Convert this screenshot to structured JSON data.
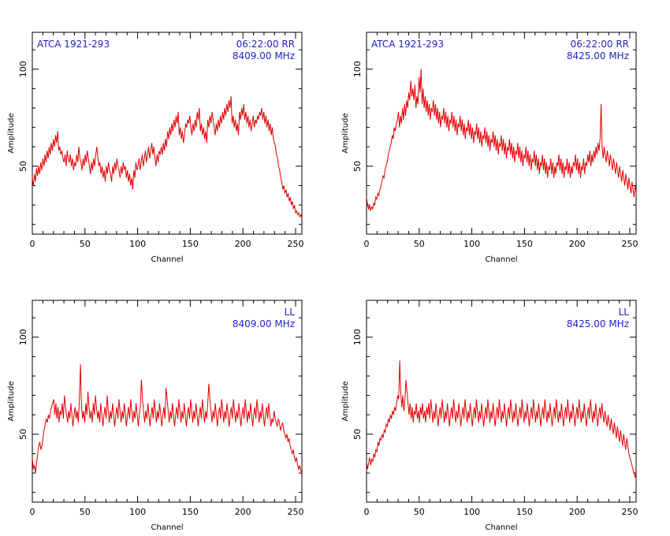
{
  "colors": {
    "trace": "#e00000",
    "annotation": "#1f1fbf",
    "frame": "#000000",
    "background": "#ffffff"
  },
  "chart_data": [
    {
      "type": "line",
      "source": "ATCA 1921-293",
      "time_pol": "06:22:00  RR",
      "freq": "8409.00 MHz",
      "xlabel": "Channel",
      "ylabel": "Amplitude",
      "xlim": [
        0,
        256
      ],
      "ylim": [
        15,
        119
      ],
      "xticks": [
        0,
        50,
        100,
        150,
        200,
        250
      ],
      "yticks": [
        50,
        100
      ],
      "series": [
        {
          "values": [
            44,
            40,
            46,
            42,
            49,
            45,
            50,
            46,
            52,
            48,
            54,
            50,
            56,
            52,
            58,
            54,
            60,
            56,
            62,
            58,
            64,
            60,
            66,
            62,
            68,
            58,
            60,
            56,
            58,
            54,
            52,
            56,
            50,
            58,
            54,
            52,
            56,
            50,
            54,
            48,
            52,
            50,
            56,
            52,
            60,
            54,
            52,
            48,
            54,
            50,
            56,
            52,
            58,
            54,
            50,
            46,
            52,
            48,
            54,
            50,
            56,
            60,
            54,
            50,
            52,
            46,
            50,
            44,
            48,
            42,
            50,
            46,
            52,
            48,
            46,
            42,
            50,
            46,
            52,
            48,
            54,
            50,
            48,
            44,
            50,
            46,
            52,
            48,
            50,
            44,
            48,
            42,
            46,
            40,
            44,
            38,
            48,
            44,
            52,
            48,
            50,
            54,
            48,
            52,
            56,
            50,
            54,
            58,
            52,
            56,
            60,
            54,
            58,
            62,
            56,
            60,
            54,
            50,
            56,
            52,
            58,
            56,
            60,
            56,
            62,
            58,
            64,
            60,
            68,
            64,
            70,
            66,
            72,
            68,
            74,
            70,
            76,
            72,
            78,
            66,
            70,
            64,
            68,
            62,
            66,
            72,
            70,
            74,
            72,
            76,
            70,
            66,
            72,
            68,
            74,
            70,
            78,
            74,
            80,
            68,
            72,
            66,
            70,
            64,
            68,
            62,
            74,
            70,
            76,
            72,
            78,
            74,
            70,
            66,
            72,
            68,
            74,
            70,
            76,
            72,
            78,
            74,
            80,
            76,
            82,
            78,
            84,
            80,
            86,
            72,
            76,
            70,
            74,
            68,
            72,
            66,
            78,
            74,
            80,
            76,
            82,
            74,
            78,
            72,
            76,
            70,
            74,
            68,
            72,
            76,
            70,
            74,
            72,
            76,
            74,
            78,
            76,
            80,
            74,
            78,
            72,
            76,
            70,
            74,
            68,
            72,
            66,
            70,
            64,
            62,
            60,
            56,
            54,
            50,
            48,
            44,
            42,
            38,
            40,
            36,
            38,
            34,
            36,
            32,
            34,
            30,
            32,
            28,
            30,
            26,
            27,
            25,
            26,
            24,
            25,
            23
          ]
        }
      ]
    },
    {
      "type": "line",
      "source": "ATCA 1921-293",
      "time_pol": "06:22:00  RR",
      "freq": "8425.00 MHz",
      "xlabel": "Channel",
      "ylabel": "Amplitude",
      "xlim": [
        0,
        256
      ],
      "ylim": [
        15,
        119
      ],
      "xticks": [
        0,
        50,
        100,
        150,
        200,
        250
      ],
      "yticks": [
        50,
        100
      ],
      "series": [
        {
          "values": [
            34,
            30,
            28,
            30,
            27,
            29,
            28,
            31,
            30,
            34,
            33,
            36,
            35,
            38,
            40,
            42,
            45,
            44,
            48,
            50,
            52,
            55,
            58,
            60,
            62,
            66,
            64,
            70,
            68,
            72,
            74,
            78,
            70,
            76,
            72,
            80,
            74,
            82,
            76,
            84,
            80,
            88,
            84,
            94,
            86,
            90,
            84,
            92,
            80,
            86,
            82,
            96,
            88,
            100,
            82,
            90,
            80,
            86,
            78,
            84,
            76,
            82,
            74,
            80,
            78,
            84,
            76,
            82,
            74,
            80,
            72,
            78,
            70,
            76,
            74,
            80,
            72,
            78,
            70,
            76,
            68,
            74,
            72,
            78,
            70,
            76,
            68,
            74,
            66,
            72,
            70,
            76,
            68,
            74,
            66,
            72,
            64,
            70,
            68,
            74,
            66,
            72,
            64,
            70,
            62,
            68,
            66,
            72,
            64,
            70,
            62,
            68,
            60,
            66,
            64,
            70,
            62,
            68,
            60,
            66,
            58,
            64,
            62,
            68,
            60,
            66,
            58,
            64,
            56,
            62,
            60,
            66,
            58,
            64,
            56,
            62,
            54,
            60,
            58,
            64,
            56,
            62,
            54,
            60,
            52,
            58,
            56,
            62,
            54,
            60,
            52,
            58,
            50,
            56,
            54,
            60,
            52,
            58,
            50,
            56,
            48,
            54,
            52,
            58,
            50,
            56,
            48,
            54,
            46,
            52,
            50,
            56,
            48,
            54,
            46,
            52,
            44,
            50,
            48,
            54,
            46,
            52,
            44,
            50,
            46,
            52,
            50,
            56,
            48,
            54,
            46,
            52,
            44,
            50,
            48,
            54,
            46,
            52,
            44,
            50,
            46,
            52,
            50,
            56,
            48,
            54,
            46,
            52,
            44,
            50,
            48,
            54,
            46,
            52,
            50,
            56,
            52,
            58,
            50,
            56,
            52,
            58,
            54,
            60,
            56,
            62,
            58,
            64,
            82,
            60,
            54,
            60,
            56,
            52,
            58,
            54,
            50,
            56,
            52,
            48,
            54,
            50,
            46,
            52,
            48,
            44,
            50,
            46,
            42,
            48,
            44,
            40,
            46,
            42,
            38,
            44,
            40,
            36,
            42,
            38,
            34,
            40,
            36
          ]
        }
      ]
    },
    {
      "type": "line",
      "source": "",
      "time_pol": "LL",
      "freq": "8409.00 MHz",
      "xlabel": "Channel",
      "ylabel": "Amplitude",
      "xlim": [
        0,
        256
      ],
      "ylim": [
        15,
        119
      ],
      "xticks": [
        0,
        50,
        100,
        150,
        200,
        250
      ],
      "yticks": [
        50,
        100
      ],
      "series": [
        {
          "values": [
            38,
            32,
            34,
            30,
            35,
            40,
            44,
            46,
            42,
            44,
            48,
            52,
            55,
            58,
            56,
            60,
            58,
            62,
            64,
            66,
            68,
            60,
            66,
            58,
            64,
            56,
            62,
            60,
            66,
            58,
            70,
            64,
            60,
            56,
            62,
            58,
            66,
            60,
            54,
            60,
            64,
            58,
            62,
            56,
            68,
            86,
            64,
            58,
            62,
            56,
            66,
            60,
            72,
            64,
            58,
            62,
            56,
            66,
            60,
            70,
            64,
            58,
            62,
            56,
            66,
            60,
            54,
            60,
            64,
            58,
            70,
            62,
            56,
            62,
            58,
            66,
            60,
            54,
            60,
            64,
            58,
            68,
            62,
            56,
            62,
            58,
            66,
            60,
            54,
            60,
            64,
            58,
            68,
            62,
            56,
            62,
            58,
            66,
            60,
            54,
            60,
            64,
            78,
            68,
            62,
            56,
            62,
            58,
            66,
            60,
            54,
            60,
            64,
            58,
            68,
            62,
            56,
            62,
            58,
            66,
            60,
            54,
            60,
            64,
            58,
            74,
            68,
            62,
            56,
            62,
            58,
            66,
            60,
            54,
            60,
            64,
            58,
            68,
            62,
            56,
            62,
            58,
            66,
            60,
            54,
            60,
            64,
            58,
            68,
            62,
            56,
            62,
            58,
            66,
            60,
            54,
            60,
            64,
            58,
            68,
            62,
            56,
            62,
            58,
            66,
            76,
            68,
            62,
            56,
            62,
            58,
            66,
            60,
            54,
            60,
            64,
            58,
            68,
            62,
            56,
            62,
            58,
            66,
            60,
            54,
            60,
            64,
            58,
            68,
            62,
            56,
            62,
            58,
            66,
            60,
            54,
            60,
            64,
            58,
            68,
            62,
            56,
            62,
            58,
            66,
            60,
            54,
            60,
            64,
            58,
            68,
            62,
            56,
            62,
            58,
            66,
            60,
            54,
            60,
            64,
            58,
            66,
            60,
            54,
            58,
            56,
            62,
            58,
            56,
            54,
            58,
            56,
            52,
            54,
            56,
            52,
            50,
            48,
            50,
            46,
            48,
            44,
            42,
            40,
            42,
            38,
            36,
            38,
            34,
            32,
            34,
            31,
            30
          ]
        }
      ]
    },
    {
      "type": "line",
      "source": "",
      "time_pol": "LL",
      "freq": "8425.00 MHz",
      "xlabel": "Channel",
      "ylabel": "Amplitude",
      "xlim": [
        0,
        256
      ],
      "ylim": [
        15,
        119
      ],
      "xticks": [
        0,
        50,
        100,
        150,
        200,
        250
      ],
      "yticks": [
        50,
        100
      ],
      "series": [
        {
          "values": [
            36,
            32,
            35,
            38,
            34,
            37,
            36,
            40,
            38,
            42,
            41,
            46,
            44,
            48,
            47,
            50,
            48,
            52,
            51,
            55,
            54,
            58,
            56,
            60,
            58,
            62,
            60,
            64,
            62,
            66,
            70,
            68,
            88,
            72,
            64,
            70,
            62,
            68,
            78,
            72,
            66,
            60,
            66,
            58,
            64,
            56,
            62,
            60,
            66,
            58,
            62,
            56,
            64,
            60,
            66,
            58,
            62,
            56,
            64,
            60,
            66,
            58,
            68,
            62,
            56,
            62,
            58,
            66,
            60,
            54,
            60,
            64,
            58,
            68,
            62,
            56,
            62,
            58,
            66,
            60,
            54,
            60,
            64,
            58,
            68,
            62,
            56,
            62,
            58,
            66,
            60,
            54,
            60,
            64,
            58,
            68,
            62,
            56,
            62,
            58,
            66,
            60,
            54,
            60,
            64,
            58,
            68,
            62,
            56,
            62,
            58,
            66,
            60,
            54,
            60,
            64,
            58,
            68,
            62,
            56,
            62,
            58,
            66,
            60,
            54,
            60,
            64,
            58,
            68,
            62,
            56,
            62,
            58,
            66,
            60,
            54,
            60,
            64,
            58,
            68,
            62,
            56,
            62,
            58,
            66,
            60,
            54,
            60,
            64,
            58,
            68,
            62,
            56,
            62,
            58,
            66,
            60,
            54,
            60,
            64,
            58,
            68,
            62,
            56,
            62,
            58,
            66,
            60,
            54,
            60,
            64,
            58,
            68,
            62,
            56,
            62,
            58,
            66,
            60,
            54,
            60,
            64,
            58,
            68,
            62,
            56,
            62,
            58,
            66,
            60,
            54,
            60,
            64,
            58,
            68,
            62,
            56,
            62,
            58,
            66,
            60,
            54,
            60,
            64,
            58,
            68,
            62,
            56,
            62,
            58,
            66,
            60,
            54,
            60,
            64,
            58,
            68,
            62,
            56,
            62,
            58,
            66,
            60,
            54,
            60,
            64,
            58,
            66,
            60,
            56,
            62,
            58,
            54,
            60,
            56,
            52,
            58,
            54,
            50,
            56,
            52,
            48,
            54,
            50,
            46,
            52,
            48,
            44,
            50,
            46,
            42,
            48,
            44,
            40,
            38,
            36,
            34,
            32,
            30,
            28,
            30
          ]
        }
      ]
    }
  ]
}
